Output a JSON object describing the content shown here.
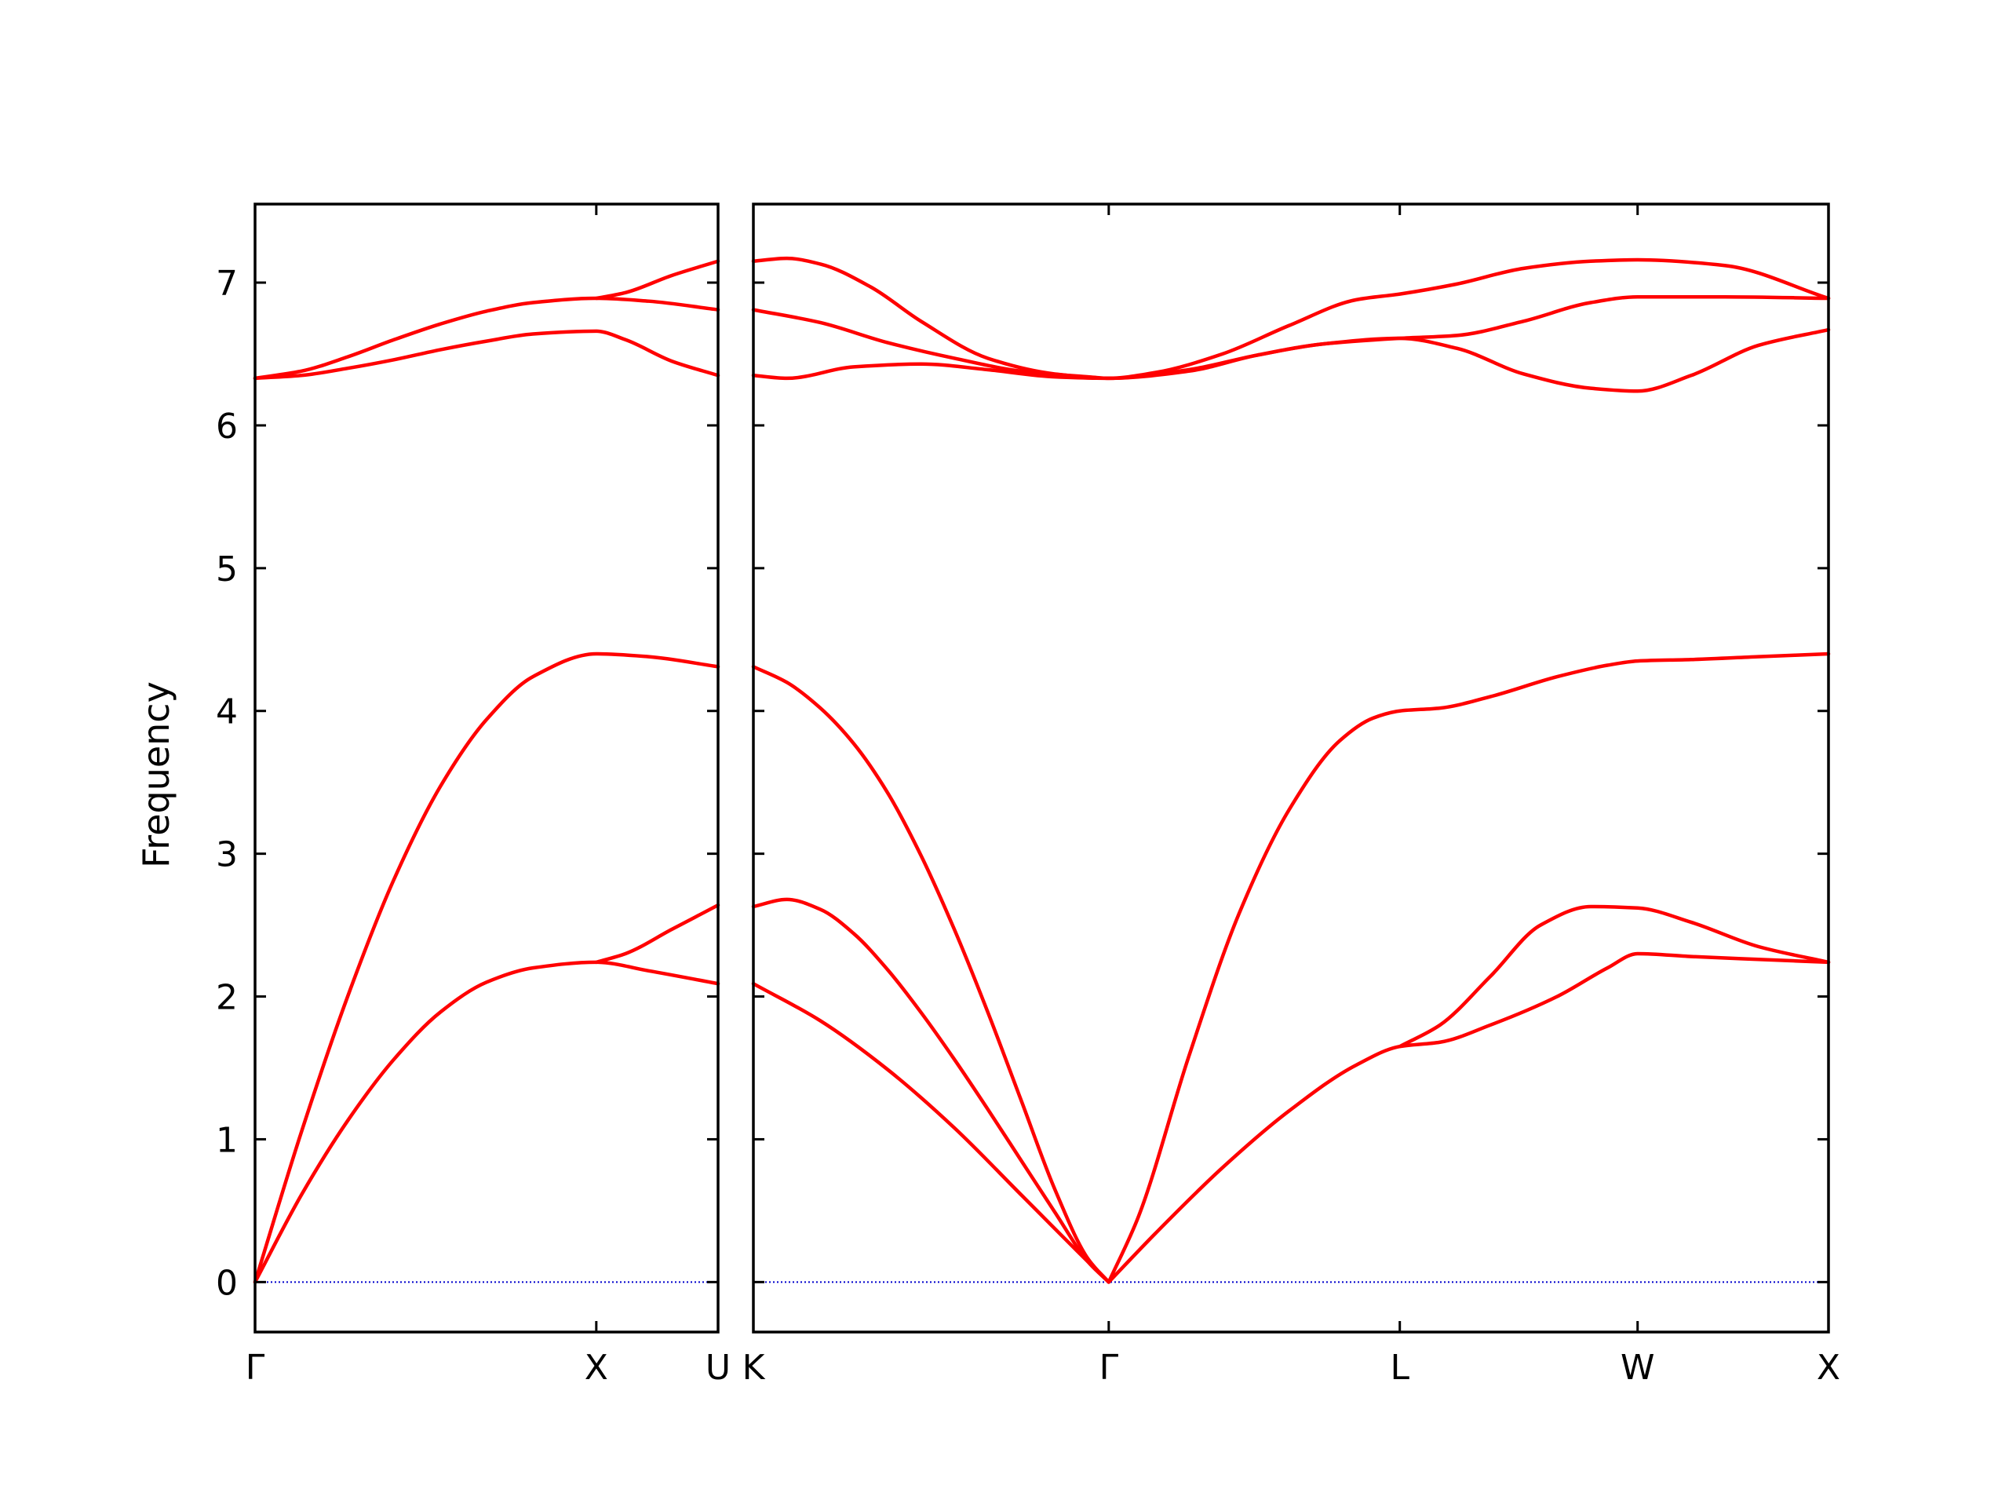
{
  "chart_data": {
    "type": "line",
    "ylabel": "Frequency",
    "ylim": [
      -0.35,
      7.55
    ],
    "yticks": [
      0,
      1,
      2,
      3,
      4,
      5,
      6,
      7
    ],
    "grid": false,
    "colors": {
      "bands": "#ff0000",
      "zero_line": "#0000cc",
      "frame": "#000000"
    },
    "panels": [
      {
        "x_range": [
          0,
          1
        ],
        "xticks": [
          {
            "x": 0,
            "label": "Γ"
          },
          {
            "x": 0.737,
            "label": "X"
          },
          {
            "x": 1,
            "label": "U"
          }
        ],
        "series": [
          {
            "values": [
              [
                0,
                0
              ],
              [
                0.1,
                0.61
              ],
              [
                0.2,
                1.13
              ],
              [
                0.3,
                1.56
              ],
              [
                0.4,
                1.89
              ],
              [
                0.5,
                2.1
              ],
              [
                0.6,
                2.2
              ],
              [
                0.737,
                2.24
              ],
              [
                0.85,
                2.18
              ],
              [
                1,
                2.09
              ]
            ]
          },
          {
            "values": [
              [
                0,
                0
              ],
              [
                0.1,
                1.05
              ],
              [
                0.2,
                2.0
              ],
              [
                0.3,
                2.82
              ],
              [
                0.4,
                3.47
              ],
              [
                0.5,
                3.94
              ],
              [
                0.6,
                4.24
              ],
              [
                0.737,
                4.4
              ],
              [
                0.85,
                4.38
              ],
              [
                1,
                4.31
              ]
            ]
          },
          {
            "values": [
              [
                0.737,
                2.24
              ],
              [
                0.8,
                2.3
              ],
              [
                0.9,
                2.47
              ],
              [
                1,
                2.64
              ]
            ]
          },
          {
            "values": [
              [
                0,
                6.33
              ],
              [
                0.1,
                6.35
              ],
              [
                0.2,
                6.4
              ],
              [
                0.3,
                6.46
              ],
              [
                0.4,
                6.53
              ],
              [
                0.5,
                6.59
              ],
              [
                0.6,
                6.64
              ],
              [
                0.737,
                6.66
              ],
              [
                0.8,
                6.6
              ],
              [
                0.9,
                6.45
              ],
              [
                1,
                6.35
              ]
            ]
          },
          {
            "values": [
              [
                0,
                6.33
              ],
              [
                0.1,
                6.38
              ],
              [
                0.2,
                6.48
              ],
              [
                0.3,
                6.6
              ],
              [
                0.4,
                6.71
              ],
              [
                0.5,
                6.8
              ],
              [
                0.6,
                6.86
              ],
              [
                0.737,
                6.89
              ],
              [
                0.85,
                6.87
              ],
              [
                1,
                6.81
              ]
            ]
          },
          {
            "values": [
              [
                0.737,
                6.89
              ],
              [
                0.8,
                6.93
              ],
              [
                0.9,
                7.05
              ],
              [
                1,
                7.15
              ]
            ]
          }
        ]
      },
      {
        "x_range": [
          0,
          3.21
        ],
        "xticks": [
          {
            "x": 0,
            "label": "K"
          },
          {
            "x": 1.061,
            "label": "Γ"
          },
          {
            "x": 1.93,
            "label": "L"
          },
          {
            "x": 2.64,
            "label": "W"
          },
          {
            "x": 3.21,
            "label": "X"
          }
        ],
        "series": [
          {
            "values": [
              [
                0,
                2.09
              ],
              [
                0.2,
                1.83
              ],
              [
                0.4,
                1.49
              ],
              [
                0.6,
                1.08
              ],
              [
                0.8,
                0.61
              ],
              [
                1.0,
                0.14
              ],
              [
                1.061,
                0
              ]
            ]
          },
          {
            "values": [
              [
                0,
                2.63
              ],
              [
                0.1,
                2.68
              ],
              [
                0.2,
                2.61
              ],
              [
                0.3,
                2.44
              ],
              [
                0.4,
                2.19
              ],
              [
                0.5,
                1.89
              ],
              [
                0.6,
                1.56
              ],
              [
                0.7,
                1.21
              ],
              [
                0.8,
                0.85
              ],
              [
                0.9,
                0.49
              ],
              [
                1.0,
                0.14
              ],
              [
                1.061,
                0
              ]
            ]
          },
          {
            "values": [
              [
                0,
                4.31
              ],
              [
                0.1,
                4.2
              ],
              [
                0.2,
                4.02
              ],
              [
                0.3,
                3.77
              ],
              [
                0.4,
                3.43
              ],
              [
                0.5,
                2.99
              ],
              [
                0.6,
                2.47
              ],
              [
                0.7,
                1.89
              ],
              [
                0.8,
                1.27
              ],
              [
                0.9,
                0.65
              ],
              [
                1.0,
                0.16
              ],
              [
                1.061,
                0
              ]
            ]
          },
          {
            "values": [
              [
                1.061,
                0
              ],
              [
                1.2,
                0.34
              ],
              [
                1.4,
                0.8
              ],
              [
                1.6,
                1.2
              ],
              [
                1.8,
                1.52
              ],
              [
                1.93,
                1.65
              ],
              [
                2.05,
                1.68
              ],
              [
                2.2,
                1.8
              ],
              [
                2.4,
                2.0
              ],
              [
                2.55,
                2.2
              ],
              [
                2.64,
                2.3
              ],
              [
                2.8,
                2.28
              ],
              [
                3.0,
                2.26
              ],
              [
                3.21,
                2.24
              ]
            ]
          },
          {
            "values": [
              [
                1.93,
                1.65
              ],
              [
                2.05,
                1.8
              ],
              [
                2.2,
                2.14
              ],
              [
                2.35,
                2.5
              ],
              [
                2.5,
                2.63
              ],
              [
                2.64,
                2.62
              ],
              [
                2.8,
                2.52
              ],
              [
                3.0,
                2.35
              ],
              [
                3.21,
                2.24
              ]
            ]
          },
          {
            "values": [
              [
                1.061,
                0
              ],
              [
                1.15,
                0.46
              ],
              [
                1.3,
                1.58
              ],
              [
                1.45,
                2.58
              ],
              [
                1.6,
                3.31
              ],
              [
                1.75,
                3.79
              ],
              [
                1.85,
                3.95
              ],
              [
                1.93,
                4.0
              ],
              [
                2.05,
                4.02
              ],
              [
                2.2,
                4.1
              ],
              [
                2.4,
                4.24
              ],
              [
                2.55,
                4.32
              ],
              [
                2.64,
                4.35
              ],
              [
                2.8,
                4.36
              ],
              [
                3.0,
                4.38
              ],
              [
                3.21,
                4.4
              ]
            ]
          },
          {
            "values": [
              [
                0,
                6.35
              ],
              [
                0.1,
                6.33
              ],
              [
                0.3,
                6.41
              ],
              [
                0.5,
                6.43
              ],
              [
                0.7,
                6.39
              ],
              [
                0.9,
                6.34
              ],
              [
                1.061,
                6.33
              ],
              [
                1.3,
                6.39
              ],
              [
                1.5,
                6.49
              ],
              [
                1.7,
                6.57
              ],
              [
                1.93,
                6.61
              ],
              [
                2.1,
                6.54
              ],
              [
                2.3,
                6.36
              ],
              [
                2.5,
                6.26
              ],
              [
                2.64,
                6.24
              ],
              [
                2.8,
                6.35
              ],
              [
                3.0,
                6.56
              ],
              [
                3.21,
                6.67
              ]
            ]
          },
          {
            "values": [
              [
                0,
                6.81
              ],
              [
                0.2,
                6.72
              ],
              [
                0.4,
                6.58
              ],
              [
                0.6,
                6.47
              ],
              [
                0.8,
                6.38
              ],
              [
                1.0,
                6.34
              ],
              [
                1.061,
                6.33
              ],
              [
                1.3,
                6.38
              ],
              [
                1.5,
                6.49
              ],
              [
                1.7,
                6.57
              ],
              [
                1.93,
                6.61
              ],
              [
                2.1,
                6.63
              ],
              [
                2.3,
                6.73
              ],
              [
                2.5,
                6.86
              ],
              [
                2.64,
                6.9
              ],
              [
                2.9,
                6.9
              ],
              [
                3.21,
                6.89
              ]
            ]
          },
          {
            "values": [
              [
                0,
                7.15
              ],
              [
                0.1,
                7.17
              ],
              [
                0.2,
                7.13
              ],
              [
                0.35,
                6.97
              ],
              [
                0.5,
                6.73
              ],
              [
                0.7,
                6.47
              ],
              [
                0.9,
                6.36
              ],
              [
                1.061,
                6.33
              ],
              [
                1.2,
                6.37
              ],
              [
                1.4,
                6.5
              ],
              [
                1.6,
                6.7
              ],
              [
                1.8,
                6.88
              ],
              [
                1.93,
                6.92
              ],
              [
                2.1,
                6.99
              ],
              [
                2.3,
                7.1
              ],
              [
                2.5,
                7.15
              ],
              [
                2.64,
                7.16
              ],
              [
                2.9,
                7.12
              ],
              [
                3.21,
                6.89
              ]
            ]
          }
        ]
      }
    ]
  }
}
